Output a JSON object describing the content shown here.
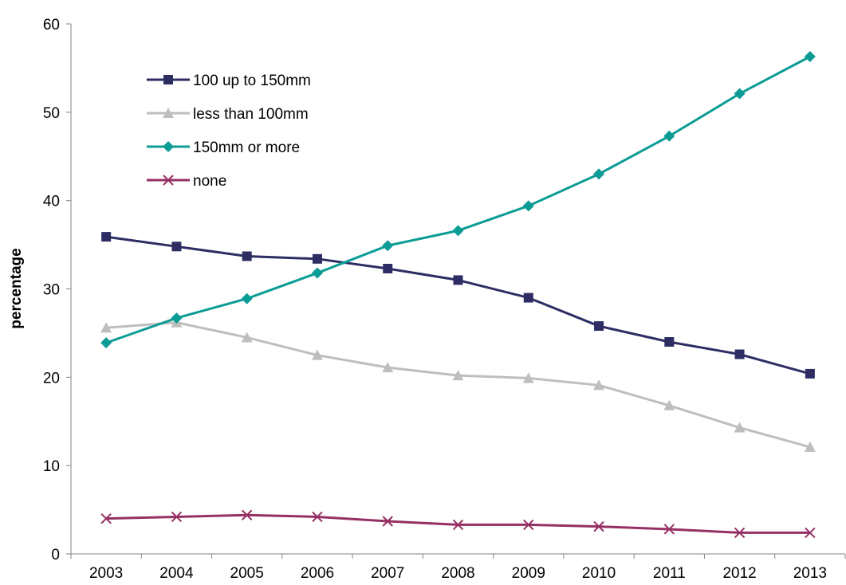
{
  "chart_data": {
    "type": "line",
    "title": "",
    "xlabel": "",
    "ylabel": "percentage",
    "ylim": [
      0,
      60
    ],
    "yticks": [
      0,
      10,
      20,
      30,
      40,
      50,
      60
    ],
    "grid": false,
    "legend_position": "top-left",
    "categories": [
      "2003",
      "2004",
      "2005",
      "2006",
      "2007",
      "2008",
      "2009",
      "2010",
      "2011",
      "2012",
      "2013"
    ],
    "series": [
      {
        "name": "100 up to 150mm",
        "color": "#2e2d63",
        "marker": "square",
        "values": [
          35.9,
          34.8,
          33.7,
          33.4,
          32.3,
          31.0,
          29.0,
          25.8,
          24.0,
          22.6,
          20.4
        ]
      },
      {
        "name": "less than 100mm",
        "color": "#bebebe",
        "marker": "triangle",
        "values": [
          25.6,
          26.2,
          24.5,
          22.5,
          21.1,
          20.2,
          19.9,
          19.1,
          16.8,
          14.3,
          12.1
        ]
      },
      {
        "name": "150mm or more",
        "color": "#0c9c96",
        "marker": "diamond",
        "values": [
          23.9,
          26.7,
          28.9,
          31.8,
          34.9,
          36.6,
          39.4,
          43.0,
          47.3,
          52.1,
          56.3
        ]
      },
      {
        "name": "none",
        "color": "#963064",
        "marker": "x",
        "values": [
          4.0,
          4.2,
          4.4,
          4.2,
          3.7,
          3.3,
          3.3,
          3.1,
          2.8,
          2.4,
          2.4
        ]
      }
    ]
  }
}
